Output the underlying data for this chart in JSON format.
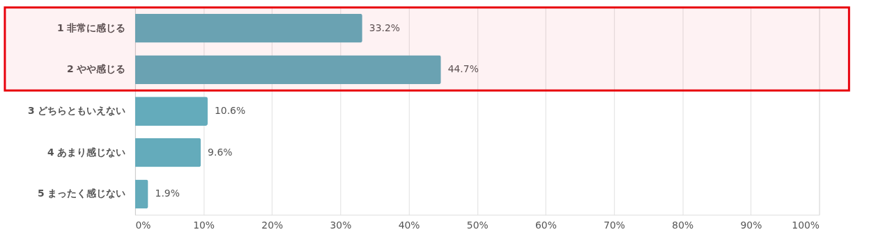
{
  "chart_data": {
    "type": "bar",
    "orientation": "horizontal",
    "categories": [
      "1 非常に感じる",
      "2 やや感じる",
      "3 どちらともいえない",
      "4 あまり感じない",
      "5 まったく感じない"
    ],
    "values": [
      33.2,
      44.7,
      10.6,
      9.6,
      1.9
    ],
    "value_labels": [
      "33.2%",
      "44.7%",
      "10.6%",
      "9.6%",
      "1.9%"
    ],
    "color": "#64abbb",
    "xlim": [
      0,
      100
    ],
    "xticks": [
      {
        "value": 0,
        "label": "0%"
      },
      {
        "value": 10,
        "label": "10%"
      },
      {
        "value": 20,
        "label": "20%"
      },
      {
        "value": 30,
        "label": "30%"
      },
      {
        "value": 40,
        "label": "40%"
      },
      {
        "value": 50,
        "label": "50%"
      },
      {
        "value": 60,
        "label": "60%"
      },
      {
        "value": 70,
        "label": "70%"
      },
      {
        "value": 80,
        "label": "80%"
      },
      {
        "value": 90,
        "label": "90%"
      },
      {
        "value": 100,
        "label": "100%"
      }
    ],
    "grid": "x",
    "bands": [
      {
        "axis": "y",
        "from": "1 非常に感じる",
        "to": "2 やや感じる",
        "color": "#e8000b"
      }
    ]
  }
}
